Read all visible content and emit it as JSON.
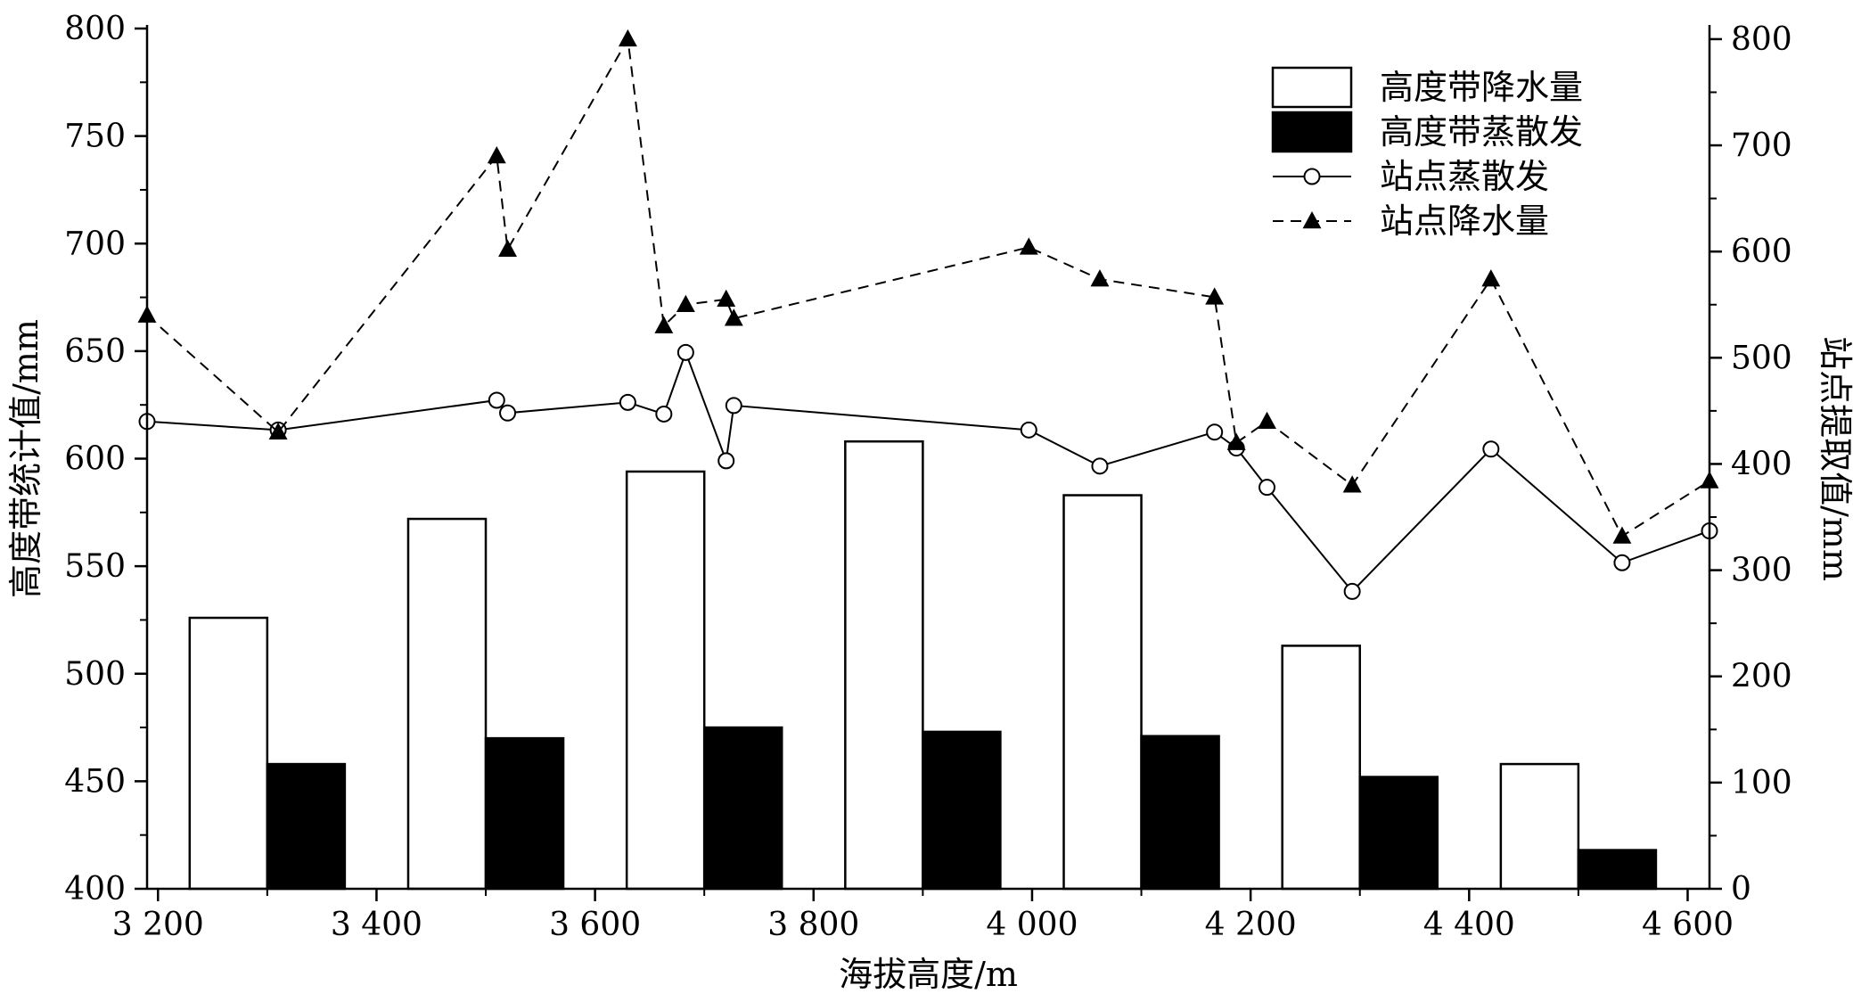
{
  "chart_data": {
    "type": "bar",
    "xlabel": "海拔高度/m",
    "ylabel_left": "高度带统计值/mm",
    "ylabel_right": "站点提取值/mm",
    "xlim": [
      3190,
      4620
    ],
    "ylim_left": [
      400,
      800
    ],
    "ylim_right": [
      0,
      810
    ],
    "x_ticks": [
      {
        "value": 3200,
        "label": "3 200"
      },
      {
        "value": 3400,
        "label": "3 400"
      },
      {
        "value": 3600,
        "label": "3 600"
      },
      {
        "value": 3800,
        "label": "3 800"
      },
      {
        "value": 4000,
        "label": "4 000"
      },
      {
        "value": 4200,
        "label": "4 200"
      },
      {
        "value": 4400,
        "label": "4 400"
      },
      {
        "value": 4600,
        "label": "4 600"
      }
    ],
    "y_left_ticks": [
      400,
      450,
      500,
      550,
      600,
      650,
      700,
      750,
      800
    ],
    "y_right_ticks": [
      0,
      100,
      200,
      300,
      400,
      500,
      600,
      700,
      800
    ],
    "legend_position": "top-right",
    "band_centers": [
      3300,
      3500,
      3700,
      3900,
      4100,
      4300,
      4500
    ],
    "band_width": 142,
    "bar_series": [
      {
        "name": "高度带降水量",
        "axis": "left",
        "fill": "#ffffff",
        "values": [
          526,
          572,
          594,
          608,
          583,
          513,
          458
        ]
      },
      {
        "name": "高度带蒸散发",
        "axis": "left",
        "fill": "#000000",
        "values": [
          458,
          470,
          475,
          473,
          471,
          452,
          418
        ]
      }
    ],
    "line_series": [
      {
        "name": "站点蒸散发",
        "axis": "right",
        "marker": "circle",
        "dash": "solid",
        "points": [
          [
            3190,
            440
          ],
          [
            3310,
            432
          ],
          [
            3510,
            460
          ],
          [
            3520,
            448
          ],
          [
            3630,
            458
          ],
          [
            3663,
            447
          ],
          [
            3683,
            505
          ],
          [
            3720,
            403
          ],
          [
            3727,
            455
          ],
          [
            3997,
            432
          ],
          [
            4062,
            398
          ],
          [
            4167,
            430
          ],
          [
            4187,
            415
          ],
          [
            4215,
            378
          ],
          [
            4293,
            280
          ],
          [
            4420,
            414
          ],
          [
            4540,
            307
          ],
          [
            4620,
            337
          ]
        ]
      },
      {
        "name": "站点降水量",
        "axis": "right",
        "marker": "triangle",
        "dash": "dashed",
        "points": [
          [
            3190,
            540
          ],
          [
            3310,
            430
          ],
          [
            3510,
            690
          ],
          [
            3520,
            602
          ],
          [
            3630,
            800
          ],
          [
            3663,
            530
          ],
          [
            3683,
            550
          ],
          [
            3720,
            555
          ],
          [
            3727,
            537
          ],
          [
            3997,
            604
          ],
          [
            4062,
            574
          ],
          [
            4167,
            557
          ],
          [
            4187,
            420
          ],
          [
            4215,
            440
          ],
          [
            4293,
            380
          ],
          [
            4420,
            574
          ],
          [
            4540,
            332
          ],
          [
            4620,
            384
          ]
        ]
      }
    ]
  }
}
